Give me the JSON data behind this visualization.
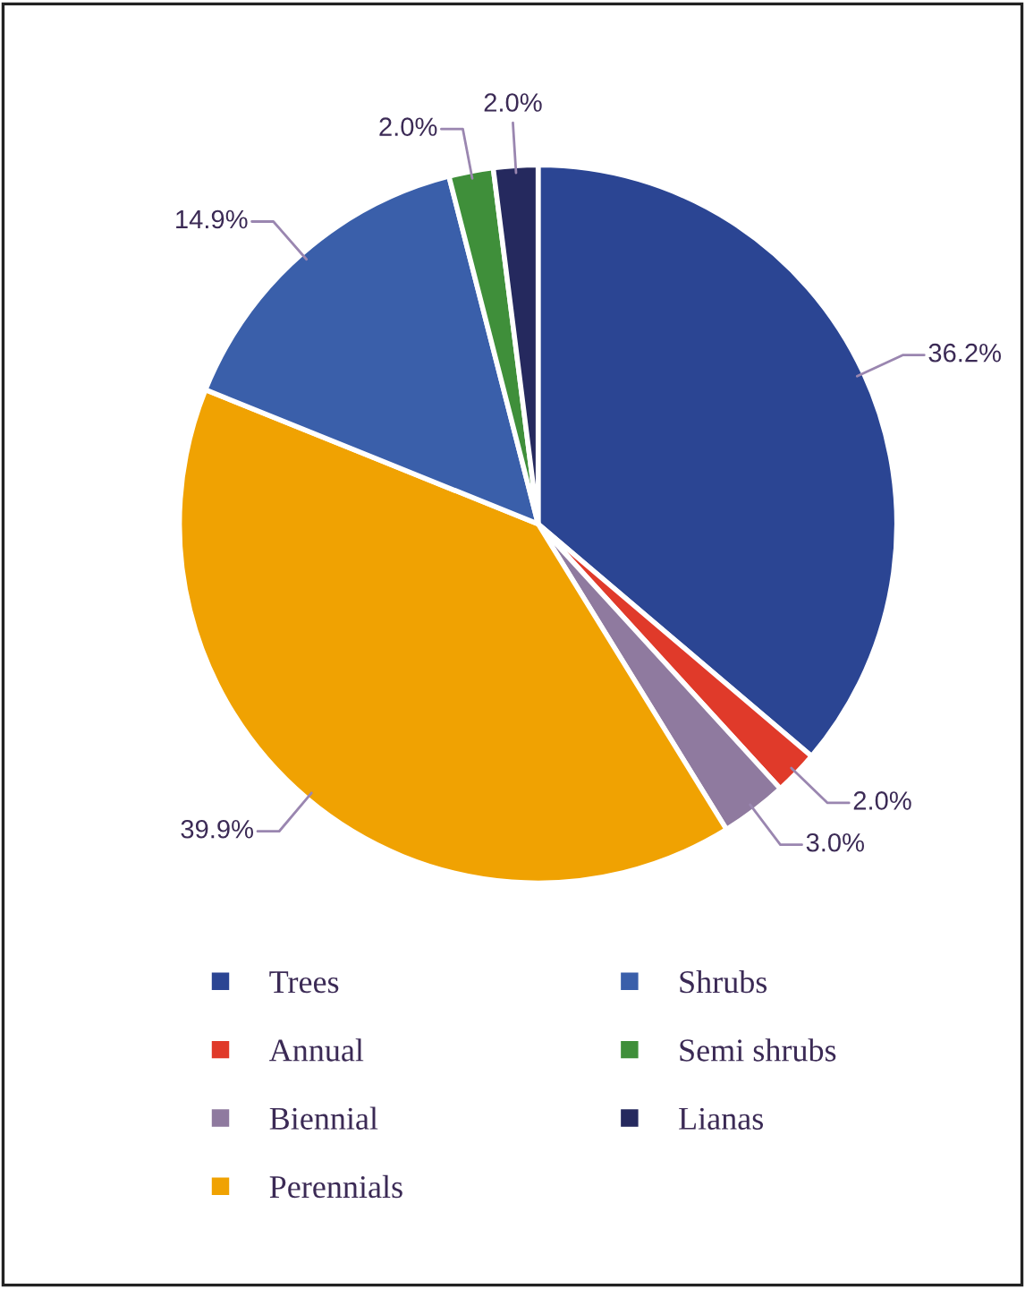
{
  "chart_data": {
    "type": "pie",
    "categories": [
      "Trees",
      "Annual",
      "Biennial",
      "Perennials",
      "Shrubs",
      "Semi shrubs",
      "Lianas"
    ],
    "values": [
      36.2,
      2.0,
      3.0,
      39.9,
      14.9,
      2.0,
      2.0
    ],
    "colors": [
      "#2b4593",
      "#e03a2a",
      "#8f7a9f",
      "#f0a202",
      "#3a5faa",
      "#3f8f3a",
      "#25295e"
    ],
    "value_labels": [
      "36.2%",
      "2.0%",
      "3.0%",
      "39.9%",
      "14.9%",
      "2.0%",
      "2.0%"
    ],
    "legend": "bottom"
  }
}
